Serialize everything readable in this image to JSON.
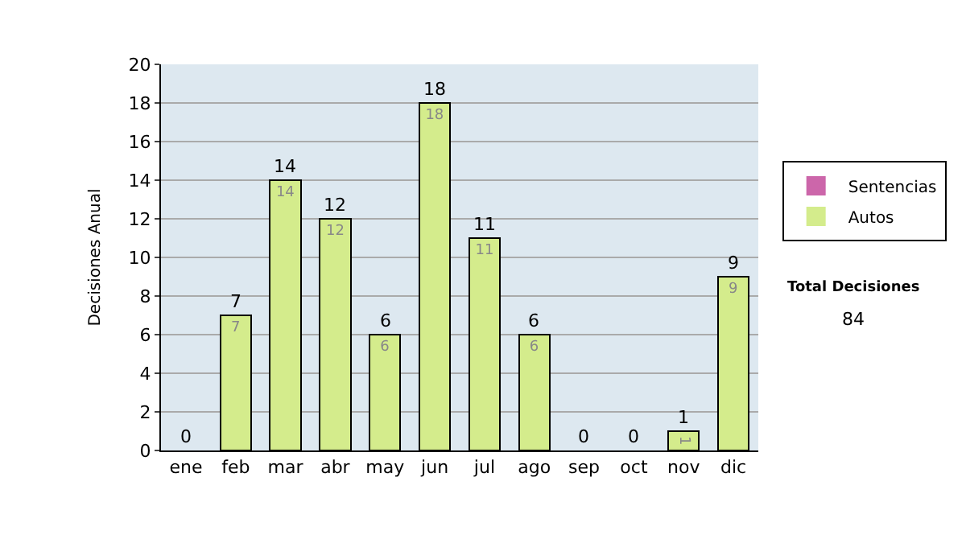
{
  "chart_data": {
    "type": "bar",
    "stacked": true,
    "ylabel": "Decisiones Anual",
    "categories": [
      "ene",
      "feb",
      "mar",
      "abr",
      "may",
      "jun",
      "jul",
      "ago",
      "sep",
      "oct",
      "nov",
      "dic"
    ],
    "series": [
      {
        "name": "Sentencias",
        "color": "#cc66aa",
        "values": [
          0,
          0,
          0,
          0,
          0,
          0,
          0,
          0,
          0,
          0,
          0,
          0
        ]
      },
      {
        "name": "Autos",
        "color": "#d4ec8c",
        "values": [
          0,
          7,
          14,
          12,
          6,
          18,
          11,
          6,
          0,
          0,
          1,
          9
        ],
        "value_labels": [
          null,
          "7",
          "14",
          "12",
          "6",
          "18",
          "11",
          "6",
          null,
          null,
          "1",
          "9"
        ]
      }
    ],
    "totals": [
      "0",
      "7",
      "14",
      "12",
      "6",
      "18",
      "11",
      "6",
      "0",
      "0",
      "1",
      "9"
    ],
    "ylim": [
      0,
      20
    ],
    "yticks": [
      0,
      2,
      4,
      6,
      8,
      10,
      12,
      14,
      16,
      18,
      20
    ],
    "grid": "y",
    "legend": "right",
    "annotations": [
      "Total Decisiones",
      "84"
    ]
  }
}
